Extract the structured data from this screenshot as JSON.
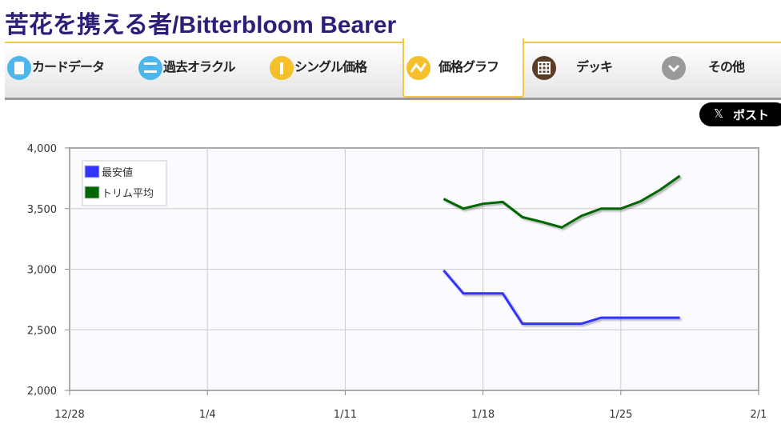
{
  "header": {
    "title": "苦花を携える者/Bitterbloom Bearer"
  },
  "tabs": [
    "カードデータ",
    "過去オラクル",
    "シングル価格",
    "価格グラフ",
    "デッキ",
    "その他"
  ],
  "post_button": "ポスト",
  "chart_data": {
    "type": "line",
    "x": [
      "1/16",
      "1/17",
      "1/18",
      "1/19",
      "1/20",
      "1/21",
      "1/22",
      "1/23",
      "1/24",
      "1/25",
      "1/26",
      "1/27",
      "1/28"
    ],
    "series": [
      {
        "name": "最安値",
        "color": "#3333ff",
        "values": [
          2990,
          2800,
          2800,
          2800,
          2550,
          2550,
          2550,
          2550,
          2600,
          2600,
          2600,
          2600,
          2600
        ]
      },
      {
        "name": "トリム平均",
        "color": "#006600",
        "values": [
          3580,
          3500,
          3540,
          3555,
          3430,
          3390,
          3345,
          3440,
          3500,
          3500,
          3560,
          3655,
          3770
        ]
      }
    ],
    "xlim": [
      "12/28",
      "2/1"
    ],
    "xticks": [
      "12/28",
      "1/4",
      "1/11",
      "1/18",
      "1/25",
      "2/1"
    ],
    "ylim": [
      2000,
      4000
    ],
    "yticks": [
      {
        "value": 2000,
        "label": "2,000"
      },
      {
        "value": 2500,
        "label": "2,500"
      },
      {
        "value": 3000,
        "label": "3,000"
      },
      {
        "value": 3500,
        "label": "3,500"
      },
      {
        "value": 4000,
        "label": "4,000"
      }
    ],
    "grid": true,
    "legend": "top-left"
  }
}
